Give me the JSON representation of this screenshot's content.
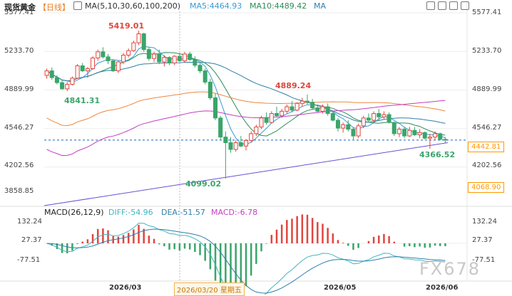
{
  "header": {
    "symbol": "现货黄金",
    "period": "【日线】",
    "ma_label": "MA(5,10,30,60,100,200)",
    "ma5": "MA5:4464.93",
    "ma10": "MA10:4489.42",
    "ma_more": "MA"
  },
  "macd_header": {
    "label": "MACD(26,12,9)",
    "diff": "DIFF:-54.96",
    "dea": "DEA:-51.57",
    "macd": "MACD:-6.78"
  },
  "y_axis_left": [
    "5577.41",
    "5233.70",
    "4889.99",
    "4546.27",
    "4202.56",
    "3858.85"
  ],
  "y_axis_right": [
    "5577.41",
    "5233.70",
    "4889.99",
    "4546.27",
    "4202.56"
  ],
  "price_tags": {
    "current": "4442.81",
    "low": "4068.90"
  },
  "macd_axis_left": [
    "132.24",
    "27.37",
    "-77.51"
  ],
  "macd_axis_right": [
    "132.24",
    "27.37",
    "-77.51"
  ],
  "x_labels": [
    "2026/03",
    "2026/05",
    "2026/06"
  ],
  "x_selected": "2026/03/20 星期五",
  "annotations": {
    "high": "5419.01",
    "low1": "4841.31",
    "low2": "4099.02",
    "swing_high": "4889.24",
    "recent_low": "4366.52"
  },
  "watermark": "FX678",
  "colors": {
    "up": "#e0463f",
    "down": "#3aa56a",
    "ma5": "#3a9bd4",
    "ma10": "#2e8b57",
    "ma30": "#2f7fa8",
    "ma60": "#f0853a",
    "ma100": "#c23fc2",
    "ma200": "#6a4fd0",
    "current": "#1565c0",
    "dea": "#2f7fa8",
    "diff": "#40b5c0"
  },
  "chart_data": {
    "type": "candlestick",
    "ohlc": [
      [
        5020,
        5080,
        4990,
        5060
      ],
      [
        5060,
        5090,
        4980,
        5000
      ],
      [
        5000,
        5020,
        4940,
        4955
      ],
      [
        4955,
        4980,
        4890,
        4900
      ],
      [
        4900,
        4960,
        4880,
        4940
      ],
      [
        4940,
        5010,
        4930,
        4995
      ],
      [
        4995,
        5120,
        4990,
        5105
      ],
      [
        5105,
        5130,
        5050,
        5060
      ],
      [
        5060,
        5095,
        5000,
        5080
      ],
      [
        5080,
        5190,
        5070,
        5175
      ],
      [
        5175,
        5250,
        5150,
        5230
      ],
      [
        5230,
        5270,
        5170,
        5185
      ],
      [
        5185,
        5210,
        5120,
        5150
      ],
      [
        5150,
        5160,
        5050,
        5060
      ],
      [
        5060,
        5150,
        5040,
        5140
      ],
      [
        5140,
        5220,
        5120,
        5200
      ],
      [
        5200,
        5260,
        5180,
        5240
      ],
      [
        5240,
        5330,
        5230,
        5310
      ],
      [
        5310,
        5419,
        5290,
        5390
      ],
      [
        5390,
        5400,
        5230,
        5250
      ],
      [
        5250,
        5270,
        5150,
        5170
      ],
      [
        5170,
        5230,
        5140,
        5210
      ],
      [
        5210,
        5250,
        5120,
        5140
      ],
      [
        5140,
        5200,
        5100,
        5180
      ],
      [
        5180,
        5190,
        5110,
        5130
      ],
      [
        5130,
        5200,
        5110,
        5190
      ],
      [
        5190,
        5220,
        5140,
        5150
      ],
      [
        5150,
        5230,
        5130,
        5210
      ],
      [
        5210,
        5230,
        5150,
        5160
      ],
      [
        5160,
        5190,
        5090,
        5110
      ],
      [
        5110,
        5130,
        5040,
        5060
      ],
      [
        5060,
        5080,
        4940,
        4960
      ],
      [
        4960,
        4990,
        4800,
        4820
      ],
      [
        4820,
        4860,
        4620,
        4640
      ],
      [
        4640,
        4660,
        4440,
        4470
      ],
      [
        4470,
        4520,
        4099,
        4420
      ],
      [
        4420,
        4470,
        4330,
        4360
      ],
      [
        4360,
        4440,
        4340,
        4420
      ],
      [
        4420,
        4480,
        4380,
        4390
      ],
      [
        4390,
        4450,
        4350,
        4440
      ],
      [
        4440,
        4520,
        4420,
        4500
      ],
      [
        4500,
        4580,
        4480,
        4560
      ],
      [
        4560,
        4660,
        4540,
        4640
      ],
      [
        4640,
        4690,
        4580,
        4600
      ],
      [
        4600,
        4700,
        4590,
        4680
      ],
      [
        4680,
        4740,
        4650,
        4660
      ],
      [
        4660,
        4720,
        4640,
        4700
      ],
      [
        4700,
        4760,
        4680,
        4740
      ],
      [
        4740,
        4790,
        4690,
        4710
      ],
      [
        4710,
        4780,
        4700,
        4770
      ],
      [
        4770,
        4820,
        4740,
        4790
      ],
      [
        4790,
        4850,
        4760,
        4780
      ],
      [
        4780,
        4810,
        4720,
        4730
      ],
      [
        4730,
        4760,
        4690,
        4700
      ],
      [
        4700,
        4760,
        4680,
        4740
      ],
      [
        4740,
        4770,
        4660,
        4680
      ],
      [
        4680,
        4700,
        4610,
        4620
      ],
      [
        4620,
        4640,
        4520,
        4550
      ],
      [
        4550,
        4600,
        4510,
        4580
      ],
      [
        4580,
        4620,
        4520,
        4540
      ],
      [
        4540,
        4560,
        4450,
        4480
      ],
      [
        4480,
        4590,
        4460,
        4570
      ],
      [
        4570,
        4660,
        4550,
        4640
      ],
      [
        4640,
        4680,
        4600,
        4620
      ],
      [
        4620,
        4700,
        4600,
        4680
      ],
      [
        4680,
        4720,
        4620,
        4650
      ],
      [
        4650,
        4700,
        4630,
        4670
      ],
      [
        4670,
        4690,
        4590,
        4600
      ],
      [
        4600,
        4610,
        4480,
        4500
      ],
      [
        4500,
        4560,
        4470,
        4540
      ],
      [
        4540,
        4560,
        4460,
        4480
      ],
      [
        4480,
        4560,
        4470,
        4530
      ],
      [
        4530,
        4560,
        4480,
        4490
      ],
      [
        4490,
        4540,
        4460,
        4510
      ],
      [
        4510,
        4520,
        4450,
        4460
      ],
      [
        4460,
        4500,
        4366,
        4470
      ],
      [
        4470,
        4520,
        4440,
        4500
      ],
      [
        4500,
        4510,
        4440,
        4450
      ],
      [
        4450,
        4470,
        4420,
        4443
      ]
    ],
    "annotations": {
      "high": 5419.01,
      "swing_high": 4889.24,
      "low1": 4841.31,
      "low2": 4099.02,
      "recent_low": 4366.52
    },
    "current_price": 4442.81,
    "ylim": [
      3858.85,
      5577.41
    ]
  }
}
